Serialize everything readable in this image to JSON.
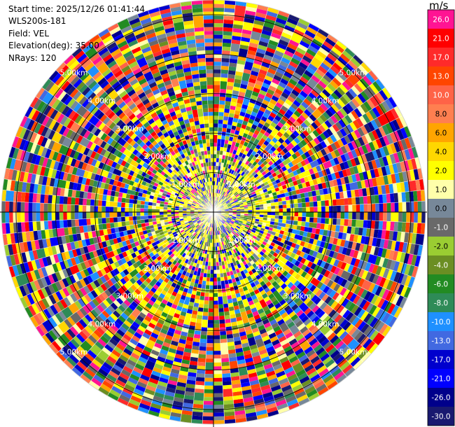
{
  "header": {
    "start_time": "Start time: 2025/12/26 01:41:44",
    "instrument": "WLS200s-181",
    "field": "Field: VEL",
    "elevation": "Elevation(deg): 35.00",
    "nrays": "NRays: 120"
  },
  "colorbar": {
    "unit": "m/s",
    "labels": [
      "26.0",
      "21.0",
      "17.0",
      "13.0",
      "10.0",
      "8.0",
      "6.0",
      "4.0",
      "2.0",
      "1.0",
      "0.0",
      "-1.0",
      "-2.0",
      "-4.0",
      "-6.0",
      "-8.0",
      "-10.0",
      "-13.0",
      "-17.0",
      "-21.0",
      "-26.0",
      "-30.0"
    ],
    "colors": [
      "#ff1493",
      "#ff0000",
      "#ff2a2a",
      "#ff4500",
      "#ff6347",
      "#ff7f50",
      "#ffa500",
      "#ffd700",
      "#ffff00",
      "#ffffaa",
      "#778899",
      "#696969",
      "#9acd32",
      "#6b8e23",
      "#228b22",
      "#2e8b57",
      "#1e90ff",
      "#4169e1",
      "#0000cd",
      "#0000ff",
      "#00008b",
      "#191970"
    ]
  },
  "chart_data": {
    "type": "ppi",
    "field": "VEL",
    "units": "m/s",
    "elevation_deg": 35.0,
    "n_rays": 120,
    "max_range_km": 5.37,
    "range_ring_labels": [
      "1.00km",
      "2.00km",
      "3.00km",
      "4.00km",
      "5.00km"
    ],
    "colorbar_range": [
      -30.0,
      30.0
    ]
  }
}
